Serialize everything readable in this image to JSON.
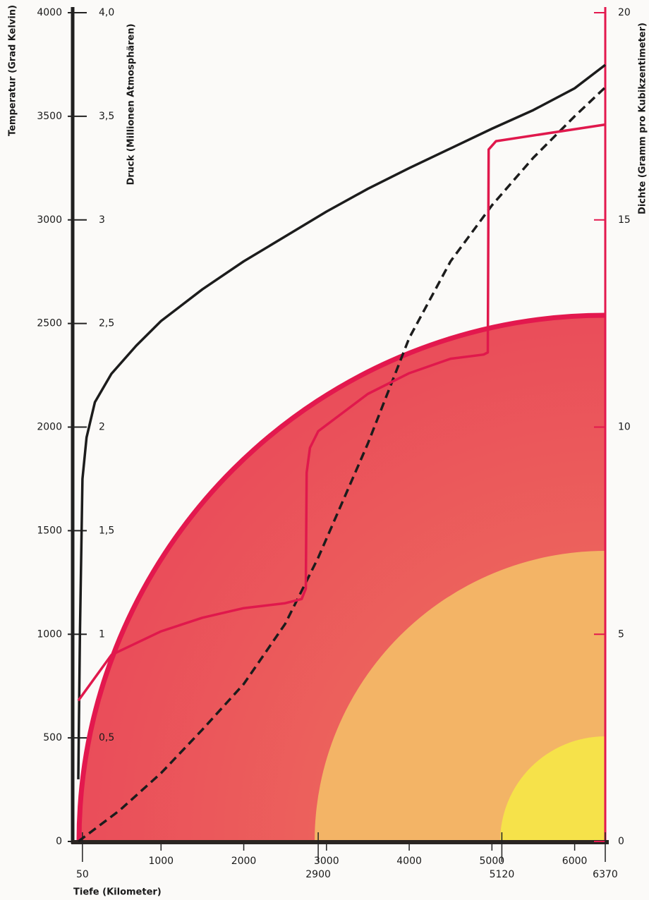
{
  "chart_data": {
    "type": "line",
    "ylabel": "Temperatur (Grad Kelvin)",
    "y3label": "Druck (Millionen Atmosphären)",
    "y2label": "Dichte (Gramm pro Kubikzentimeter)",
    "xlabel": "Tiefe (Kilometer)",
    "xlim": [
      0,
      6370
    ],
    "xticks": [
      50,
      1000,
      2000,
      2900,
      3000,
      4000,
      5000,
      5120,
      6000,
      6370
    ],
    "ylim": [
      0,
      4000
    ],
    "yticks": [
      0,
      500,
      1000,
      1500,
      2000,
      2500,
      3000,
      3500,
      4000
    ],
    "y3lim": [
      0,
      4
    ],
    "y3ticks": [
      {
        "value": 0.5,
        "label": "0,5"
      },
      1,
      {
        "value": 1.5,
        "label": "1,5"
      },
      2,
      {
        "value": 2.5,
        "label": "2,5"
      },
      3,
      {
        "value": 3.5,
        "label": "3,5"
      },
      {
        "value": 4,
        "label": "4,0"
      }
    ],
    "y2lim": [
      0,
      20
    ],
    "y2ticks": [
      0,
      5,
      10,
      15,
      20
    ],
    "series": [
      {
        "color": "#1c1c1c",
        "dashed": false,
        "x": [
          0,
          20,
          50,
          100,
          200,
          400,
          700,
          1000,
          1500,
          2000,
          2500,
          3000,
          3500,
          4000,
          4500,
          5000,
          5500,
          6000,
          6370
        ],
        "values": [
          300,
          1000,
          1750,
          1950,
          2120,
          2257,
          2393,
          2512,
          2665,
          2800,
          2920,
          3040,
          3150,
          3250,
          3345,
          3440,
          3530,
          3635,
          3748
        ]
      },
      {
        "color": "#1c1c1c",
        "dashed": true,
        "axis": "y3",
        "x": [
          0,
          500,
          1000,
          1500,
          2000,
          2500,
          2900,
          3500,
          4000,
          4500,
          5000,
          5500,
          6000,
          6370
        ],
        "values": [
          0,
          0.15,
          0.33,
          0.54,
          0.76,
          1.05,
          1.37,
          1.92,
          2.43,
          2.8,
          3.07,
          3.3,
          3.5,
          3.64
        ]
      },
      {
        "color": "#e0184c",
        "dashed": false,
        "axis": "y2",
        "x": [
          0,
          400,
          1000,
          1500,
          2000,
          2500,
          2700,
          2750,
          2760,
          2800,
          2900,
          3500,
          4000,
          4500,
          4900,
          4950,
          4960,
          5050,
          6370
        ],
        "values": [
          3.4,
          4.5,
          5.07,
          5.4,
          5.63,
          5.75,
          5.85,
          6.1,
          8.9,
          9.5,
          9.9,
          10.8,
          11.3,
          11.65,
          11.75,
          11.8,
          16.7,
          16.9,
          17.3
        ]
      }
    ]
  }
}
